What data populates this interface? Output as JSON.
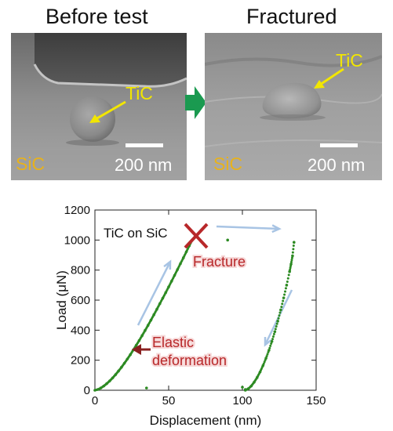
{
  "header": {
    "left_title": "Before test",
    "right_title": "Fractured"
  },
  "left_panel": {
    "material_label": "SiC",
    "particle_label": "TiC",
    "scalebar_label": "200 nm"
  },
  "right_panel": {
    "material_label": "SiC",
    "particle_label": "TiC",
    "scalebar_label": "200 nm"
  },
  "colors": {
    "label_yellow": "#f2e600",
    "label_orange": "#e8b21c",
    "arrow_green": "#1a9a50",
    "data_green": "#2c8a22",
    "annotation_red": "#b8282a",
    "guide_blue": "#a8c4e4"
  },
  "chart_data": {
    "type": "scatter",
    "title": "",
    "xlabel": "Displacement (nm)",
    "ylabel": "Load (μN)",
    "xlim": [
      0,
      150
    ],
    "ylim": [
      0,
      1200
    ],
    "xticks": [
      "0",
      "50",
      "100",
      "150"
    ],
    "yticks": [
      "0",
      "200",
      "400",
      "600",
      "800",
      "1000",
      "1200"
    ],
    "legend_text": "TiC on SiC",
    "annotations": {
      "fracture": "Fracture",
      "elastic_line1": "Elastic",
      "elastic_line2": "deformation"
    },
    "series": [
      {
        "name": "",
        "segment": "loading",
        "x": [
          0,
          2,
          4,
          6,
          8,
          10,
          12,
          14,
          16,
          18,
          20,
          22,
          24,
          26,
          28,
          30,
          32,
          34,
          36,
          38,
          40,
          42,
          44,
          46,
          48,
          50,
          52,
          54,
          56,
          58,
          60,
          62,
          64,
          66
        ],
        "y": [
          0,
          5,
          15,
          28,
          44,
          62,
          82,
          104,
          128,
          153,
          180,
          208,
          237,
          268,
          299,
          331,
          364,
          398,
          432,
          467,
          503,
          539,
          576,
          613,
          650,
          688,
          726,
          765,
          804,
          843,
          882,
          922,
          962,
          1000
        ]
      },
      {
        "name": "",
        "segment": "unloading",
        "x": [
          102,
          104,
          106,
          108,
          110,
          112,
          114,
          116,
          118,
          120,
          122,
          124,
          126,
          128,
          130,
          132,
          133,
          134,
          135
        ],
        "y": [
          0,
          10,
          28,
          54,
          85,
          122,
          165,
          213,
          266,
          325,
          390,
          460,
          535,
          615,
          700,
          790,
          840,
          895,
          985
        ]
      },
      {
        "name": "",
        "segment": "stray",
        "x": [
          90,
          35,
          100,
          102
        ],
        "y": [
          1000,
          15,
          20,
          5
        ]
      }
    ]
  }
}
